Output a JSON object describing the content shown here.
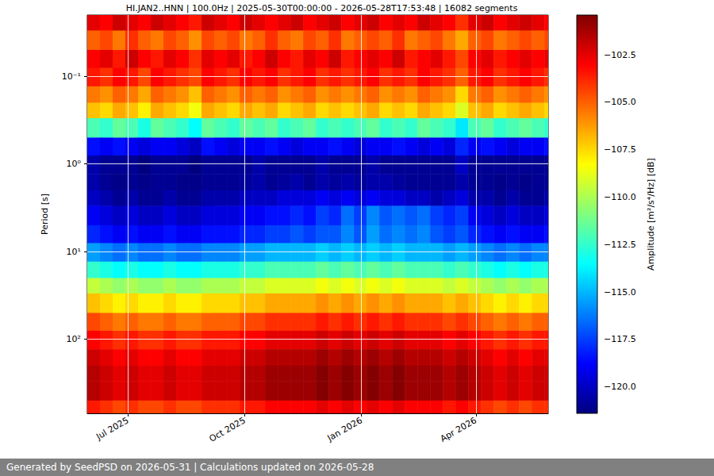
{
  "chart_data": {
    "type": "heatmap",
    "title": "HI.JAN2..HNN | 100.0Hz | 2025-05-30T00:00:00 - 2026-05-28T17:53:48 | 16082 segments",
    "footer": "Generated by SeedPSD on 2026-05-31 | Calculations updated on 2026-05-28",
    "ylabel": "Period [s]",
    "log": "y",
    "grid": true,
    "xlim": [
      "2025-05-30",
      "2026-05-28"
    ],
    "xticks": [
      {
        "value": "2025-07-01",
        "label": "Jul 2025"
      },
      {
        "value": "2025-10-01",
        "label": "Oct 2025"
      },
      {
        "value": "2026-01-01",
        "label": "Jan 2026"
      },
      {
        "value": "2026-04-01",
        "label": "Apr 2026"
      }
    ],
    "ylim": [
      0.02,
      700
    ],
    "yticks": [
      {
        "value": 0.1,
        "label": "10⁻¹"
      },
      {
        "value": 1,
        "label": "10⁰"
      },
      {
        "value": 10,
        "label": "10¹"
      },
      {
        "value": 100,
        "label": "10²"
      }
    ],
    "x": [
      "2025-05-30",
      "2025-06-09",
      "2025-06-19",
      "2025-06-29",
      "2025-07-09",
      "2025-07-19",
      "2025-07-29",
      "2025-08-08",
      "2025-08-18",
      "2025-08-28",
      "2025-09-07",
      "2025-09-17",
      "2025-09-27",
      "2025-10-07",
      "2025-10-17",
      "2025-10-27",
      "2025-11-06",
      "2025-11-16",
      "2025-11-26",
      "2025-12-06",
      "2025-12-16",
      "2025-12-26",
      "2026-01-05",
      "2026-01-15",
      "2026-01-25",
      "2026-02-04",
      "2026-02-14",
      "2026-02-24",
      "2026-03-06",
      "2026-03-16",
      "2026-03-26",
      "2026-04-05",
      "2026-04-15",
      "2026-04-25",
      "2026-05-05",
      "2026-05-15",
      "2026-05-25",
      "2026-05-28"
    ],
    "y": [
      0.02,
      0.03,
      0.05,
      0.08,
      0.13,
      0.2,
      0.3,
      0.5,
      0.8,
      1.3,
      2,
      3,
      5,
      8,
      13,
      20,
      30,
      50,
      80,
      130,
      200,
      300,
      500,
      700
    ],
    "cells": [
      [
        -102.5,
        -103,
        -102,
        -102.5,
        -103,
        -102,
        -102.5,
        -103,
        -103.5,
        -102,
        -102.5,
        -103,
        -102,
        -102.5,
        -103,
        -102.5,
        -102,
        -103,
        -102.5,
        -102,
        -103,
        -102.5,
        -102,
        -103,
        -102.5,
        -103,
        -102,
        -102.5,
        -103,
        -104,
        -102.5,
        -102,
        -103,
        -102.5,
        -102,
        -102.5,
        -103
      ],
      [
        -105,
        -104.5,
        -105.5,
        -104,
        -105,
        -105.5,
        -104.5,
        -105,
        -106,
        -104.5,
        -105,
        -104.5,
        -105.5,
        -105,
        -104,
        -105,
        -105.5,
        -104.5,
        -105,
        -104,
        -105.5,
        -105,
        -104.5,
        -105,
        -104,
        -105.5,
        -105,
        -104.5,
        -105.5,
        -106.5,
        -105,
        -104.5,
        -105.5,
        -105,
        -104.5,
        -105,
        -104.5
      ],
      [
        -103,
        -102.5,
        -103.5,
        -102,
        -103,
        -103.5,
        -102.5,
        -103,
        -104,
        -102.5,
        -103,
        -102.5,
        -103.5,
        -103,
        -102,
        -103,
        -103.5,
        -102.5,
        -103,
        -102,
        -103.5,
        -103,
        -102.5,
        -103,
        -102,
        -103.5,
        -103,
        -102.5,
        -103.5,
        -104.5,
        -103,
        -102.5,
        -103.5,
        -103,
        -102.5,
        -103,
        -102.5
      ],
      [
        -103.5,
        -104,
        -103,
        -103.5,
        -104.5,
        -103,
        -103.5,
        -104,
        -104.5,
        -103,
        -103.5,
        -104,
        -103,
        -103.5,
        -103,
        -104,
        -103.5,
        -103,
        -104,
        -103.5,
        -104,
        -103.5,
        -103,
        -104,
        -103.5,
        -104,
        -103,
        -103.5,
        -104,
        -105,
        -103.5,
        -103,
        -104,
        -103.5,
        -103,
        -103.5,
        -104
      ],
      [
        -105.5,
        -106,
        -105,
        -105.5,
        -106.5,
        -105,
        -105.5,
        -106,
        -107,
        -105,
        -105.5,
        -106,
        -105,
        -105.5,
        -105,
        -106,
        -105.5,
        -105,
        -106,
        -105.5,
        -106,
        -105.5,
        -105,
        -106,
        -105.5,
        -106,
        -105,
        -105.5,
        -106,
        -107.5,
        -105.5,
        -105,
        -106,
        -105.5,
        -105,
        -105.5,
        -106
      ],
      [
        -107,
        -107.5,
        -106.5,
        -107,
        -108,
        -106.5,
        -107,
        -107.5,
        -108.5,
        -106.5,
        -107,
        -107.5,
        -106.5,
        -107,
        -106.5,
        -107.5,
        -107,
        -106.5,
        -107.5,
        -107,
        -107.5,
        -107,
        -106.5,
        -107.5,
        -107,
        -107.5,
        -106.5,
        -107,
        -107.5,
        -109,
        -107,
        -106.5,
        -107.5,
        -107,
        -106.5,
        -107,
        -107.5
      ],
      [
        -112,
        -112.5,
        -111.5,
        -112,
        -113,
        -111.5,
        -112,
        -112.5,
        -113.5,
        -111.5,
        -112,
        -112.5,
        -111.5,
        -112,
        -111.5,
        -112.5,
        -112,
        -111.5,
        -112.5,
        -112,
        -112.5,
        -112,
        -111.5,
        -112.5,
        -112,
        -112.5,
        -111.5,
        -112,
        -112.5,
        -114,
        -112,
        -111.5,
        -112.5,
        -112,
        -111.5,
        -112,
        -112.5
      ],
      [
        -118.5,
        -119,
        -118.5,
        -119,
        -119.5,
        -119,
        -119,
        -119.5,
        -120,
        -118.5,
        -119,
        -119.5,
        -119,
        -119,
        -118.5,
        -119,
        -119.5,
        -119,
        -119,
        -118.5,
        -119,
        -119.5,
        -119,
        -119,
        -118.5,
        -119,
        -119.5,
        -119,
        -119.5,
        -118,
        -119,
        -118.5,
        -119,
        -119.5,
        -119,
        -119,
        -118.5
      ],
      [
        -120.5,
        -121,
        -121,
        -121,
        -121.5,
        -121,
        -121,
        -121,
        -121.5,
        -121,
        -121,
        -121,
        -121,
        -120.5,
        -121,
        -121,
        -121,
        -121,
        -120.5,
        -121,
        -121,
        -121,
        -120.5,
        -121,
        -121,
        -121,
        -121,
        -121,
        -121,
        -120,
        -121,
        -121,
        -121,
        -121,
        -121,
        -121,
        -121
      ],
      [
        -120.5,
        -121,
        -121.2,
        -121,
        -121.2,
        -121,
        -121,
        -121.2,
        -121.2,
        -121,
        -121,
        -121,
        -120.8,
        -120.5,
        -121,
        -120.8,
        -120.5,
        -121,
        -120.5,
        -120.8,
        -120.5,
        -120.8,
        -120.5,
        -120.5,
        -120.8,
        -121,
        -121,
        -121,
        -121,
        -120.5,
        -121,
        -121,
        -121.2,
        -121,
        -121.2,
        -121,
        -121
      ],
      [
        -120,
        -120.5,
        -121,
        -120.5,
        -121,
        -121,
        -120.5,
        -121,
        -121,
        -120.5,
        -120.5,
        -120.5,
        -120,
        -120,
        -120,
        -119.5,
        -119.5,
        -119.5,
        -119,
        -119.5,
        -119,
        -119.5,
        -119,
        -119.5,
        -119.5,
        -120,
        -120,
        -120.5,
        -120,
        -119.5,
        -120.5,
        -120.5,
        -121,
        -120.5,
        -121,
        -121,
        -120.5
      ],
      [
        -119,
        -119.5,
        -120,
        -119.5,
        -120,
        -120,
        -119.5,
        -120,
        -120,
        -119.5,
        -119.5,
        -119.5,
        -119,
        -119,
        -118.5,
        -118.5,
        -118,
        -118.5,
        -117.5,
        -118,
        -116.5,
        -117.5,
        -116,
        -117,
        -116.5,
        -117,
        -116.5,
        -117.5,
        -118,
        -117.5,
        -119,
        -119.5,
        -120,
        -119.5,
        -120,
        -120,
        -119.5
      ],
      [
        -118,
        -118.5,
        -119,
        -118.5,
        -119,
        -119,
        -118.5,
        -119,
        -119,
        -118.5,
        -118.5,
        -118.5,
        -118,
        -118,
        -117.5,
        -117.5,
        -117,
        -117.5,
        -117,
        -117,
        -116,
        -117,
        -115.5,
        -116.5,
        -116,
        -116.5,
        -116,
        -117,
        -117.5,
        -117,
        -118,
        -118.5,
        -119,
        -118.5,
        -119,
        -119,
        -118.5
      ],
      [
        -115.5,
        -116,
        -116.5,
        -116,
        -116.5,
        -116.5,
        -116,
        -116.5,
        -116.5,
        -116,
        -116,
        -116,
        -115.5,
        -115.5,
        -115,
        -115,
        -115,
        -115,
        -114.5,
        -115,
        -114.5,
        -115,
        -114.5,
        -115,
        -114.5,
        -115,
        -115,
        -115,
        -115.5,
        -115,
        -115.5,
        -116,
        -116.5,
        -116,
        -116.5,
        -116,
        -116
      ],
      [
        -112.5,
        -113,
        -113.5,
        -113,
        -113.5,
        -113.5,
        -113,
        -113.5,
        -113.5,
        -113,
        -113,
        -113,
        -112.5,
        -112.5,
        -112,
        -112,
        -112,
        -112,
        -111.5,
        -112,
        -111.5,
        -112,
        -111.5,
        -112,
        -111.5,
        -112,
        -112,
        -112,
        -112.5,
        -112,
        -112.5,
        -113,
        -113.5,
        -113,
        -113.5,
        -113,
        -113
      ],
      [
        -109.5,
        -110,
        -110.5,
        -110,
        -110.5,
        -110.5,
        -110,
        -110.5,
        -110.5,
        -110,
        -110,
        -110,
        -109.5,
        -109.5,
        -109,
        -109,
        -109,
        -109,
        -108.5,
        -109,
        -108.5,
        -109,
        -108.5,
        -109,
        -108.5,
        -109,
        -109,
        -109,
        -109.5,
        -109,
        -109.5,
        -110,
        -110.5,
        -110,
        -110.5,
        -110,
        -110
      ],
      [
        -107,
        -107.5,
        -108,
        -107.5,
        -108,
        -108,
        -107.5,
        -108,
        -108,
        -107.5,
        -107.5,
        -107.5,
        -107,
        -107,
        -106.5,
        -106.5,
        -106.5,
        -106.5,
        -106,
        -106.5,
        -106,
        -106.5,
        -106,
        -106.5,
        -106,
        -106.5,
        -106.5,
        -106.5,
        -107,
        -106.5,
        -107,
        -107.5,
        -108,
        -107.5,
        -108,
        -107.5,
        -107.5
      ],
      [
        -104.5,
        -105,
        -105.5,
        -105,
        -105.5,
        -105.5,
        -105,
        -105.5,
        -105.5,
        -105,
        -105,
        -105,
        -104.5,
        -104.5,
        -104,
        -104,
        -104,
        -104,
        -103.5,
        -104,
        -103.5,
        -104,
        -103.5,
        -104,
        -103.5,
        -104,
        -104,
        -104,
        -104.5,
        -104,
        -104.5,
        -105,
        -105.5,
        -105,
        -105.5,
        -105,
        -105
      ],
      [
        -103,
        -103.5,
        -104,
        -103.5,
        -104,
        -104,
        -103.5,
        -104,
        -104,
        -103.5,
        -103.5,
        -103.5,
        -103,
        -103,
        -102.5,
        -102.5,
        -102.5,
        -102.5,
        -102,
        -102.5,
        -102,
        -102.5,
        -102,
        -102.5,
        -102,
        -102.5,
        -102.5,
        -102.5,
        -103,
        -102.5,
        -103,
        -103.5,
        -104,
        -103.5,
        -104,
        -103.5,
        -103.5
      ],
      [
        -102,
        -102.5,
        -103,
        -102.5,
        -103,
        -103,
        -102.5,
        -103,
        -103,
        -102.5,
        -102.5,
        -102.5,
        -102,
        -102,
        -101.5,
        -101.5,
        -101.5,
        -101.5,
        -101,
        -101.5,
        -101,
        -101.5,
        -101,
        -101.5,
        -101,
        -101.5,
        -101.5,
        -101.5,
        -102,
        -101.5,
        -102,
        -102.5,
        -103,
        -102.5,
        -103,
        -102.5,
        -102.5
      ],
      [
        -101.5,
        -102,
        -102.5,
        -102,
        -102.5,
        -102.5,
        -102,
        -102.5,
        -102.5,
        -102,
        -102,
        -102,
        -101.5,
        -101.5,
        -101,
        -101,
        -101,
        -101,
        -100.5,
        -101,
        -100.5,
        -101,
        -100.5,
        -101,
        -100.5,
        -101,
        -101,
        -101,
        -101.5,
        -101,
        -101.5,
        -102,
        -102.5,
        -102,
        -102.5,
        -102,
        -102
      ],
      [
        -101.5,
        -102,
        -102.5,
        -102,
        -102.5,
        -102.5,
        -102,
        -102.5,
        -102.5,
        -102,
        -102,
        -102,
        -101.5,
        -101.5,
        -101,
        -101,
        -101,
        -101,
        -100.5,
        -101,
        -100.5,
        -101,
        -100.5,
        -101,
        -100.5,
        -101,
        -101,
        -101,
        -101.5,
        -101,
        -101.5,
        -102,
        -102.5,
        -102,
        -102.5,
        -102,
        -102
      ],
      [
        -103.5,
        -104,
        -104.5,
        -104,
        -104.5,
        -104.5,
        -104,
        -104.5,
        -104.5,
        -104,
        -104,
        -104,
        -103.5,
        -103.5,
        -103,
        -103,
        -103,
        -103,
        -102.5,
        -103,
        -102.5,
        -103,
        -102.5,
        -103,
        -102.5,
        -103,
        -103,
        -103,
        -103.5,
        -103,
        -103.5,
        -104,
        -104.5,
        -104,
        -104.5,
        -104,
        -104
      ]
    ],
    "colorbar": {
      "label": "Amplitude [m²/s⁴/Hz] [dB]",
      "lim": [
        -121.4,
        -100.4
      ],
      "ticks": [
        {
          "value": -120,
          "label": "−120.0"
        },
        {
          "value": -117.5,
          "label": "−117.5"
        },
        {
          "value": -115,
          "label": "−115.0"
        },
        {
          "value": -112.5,
          "label": "−112.5"
        },
        {
          "value": -110,
          "label": "−110.0"
        },
        {
          "value": -107.5,
          "label": "−107.5"
        },
        {
          "value": -105,
          "label": "−105.0"
        },
        {
          "value": -102.5,
          "label": "−102.5"
        }
      ]
    }
  }
}
